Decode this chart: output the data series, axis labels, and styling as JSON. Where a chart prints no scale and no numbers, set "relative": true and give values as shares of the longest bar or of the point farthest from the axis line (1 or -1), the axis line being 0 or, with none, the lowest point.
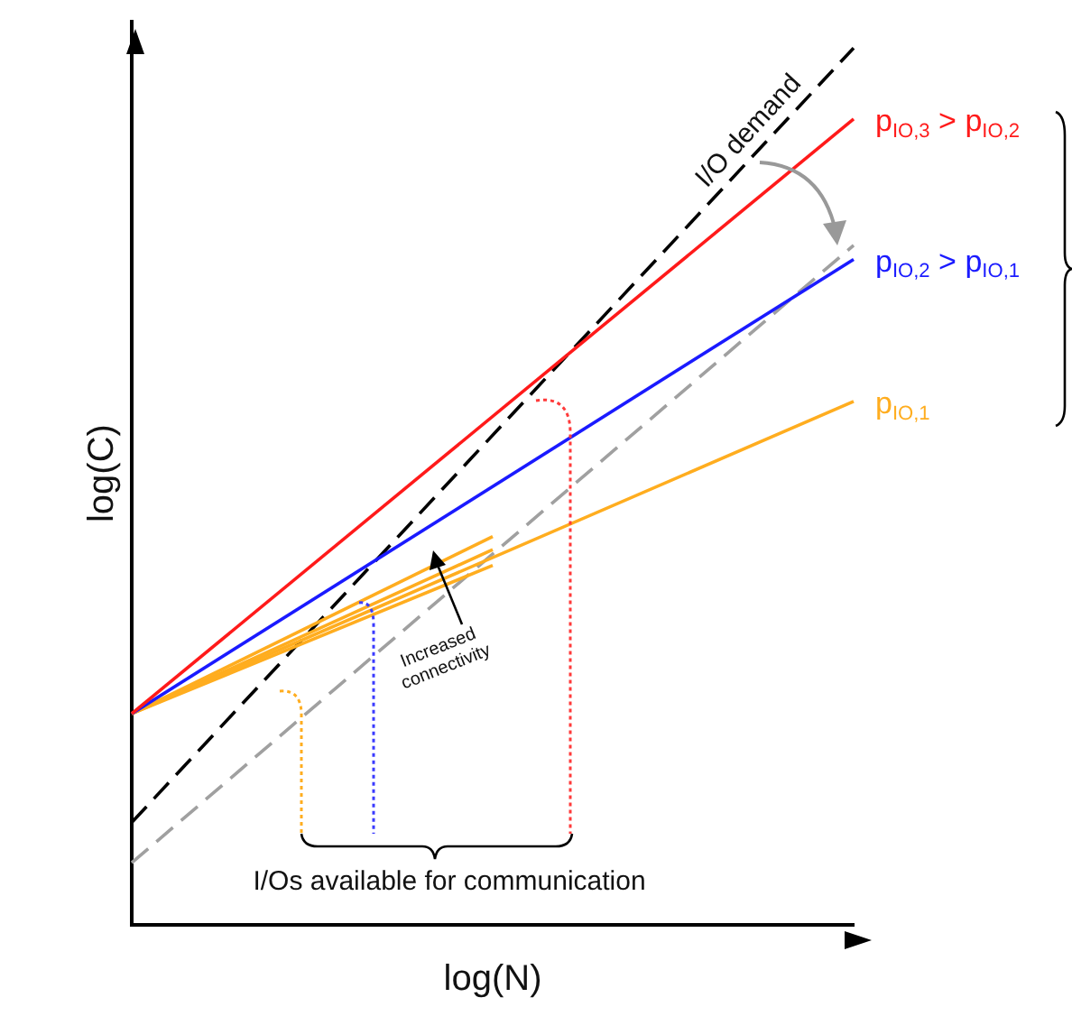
{
  "chart_data": {
    "type": "line",
    "relative": true,
    "xlabel": "log(N)",
    "ylabel": "log(C)",
    "annotations": [
      "I/O demand",
      "Increased connectivity",
      "I/Os available for communication"
    ],
    "categories": [
      null,
      null,
      null
    ],
    "series": [
      {
        "name": "p$_{IO,3}$ > p$_{IO,2}$",
        "color": "#ff1a1a",
        "values": [
          0.241,
          null,
          0.919
        ]
      },
      {
        "name": "p$_{IO,2}$ > p$_{IO,1}$",
        "color": "#1a1aff",
        "values": [
          0.241,
          null,
          0.759
        ]
      },
      {
        "name": "p$_{IO,1}$",
        "color": "#ffad1f",
        "values": [
          0.241,
          null,
          0.597
        ]
      },
      {
        "color": "#ffad1f",
        "values": [
          0.241,
          0.443,
          null
        ]
      },
      {
        "color": "#ffad1f",
        "values": [
          0.241,
          0.428,
          null
        ]
      },
      {
        "color": "#ffad1f",
        "values": [
          0.241,
          0.41,
          null
        ]
      },
      {
        "color": "#000000",
        "line_style": "dashed",
        "values": [
          0.117,
          null,
          1
        ]
      },
      {
        "color": "#a0a0a0",
        "line_style": "dashed",
        "values": [
          0.071,
          null,
          0.775
        ]
      }
    ],
    "grid": false,
    "legend": false,
    "marker": "none"
  }
}
